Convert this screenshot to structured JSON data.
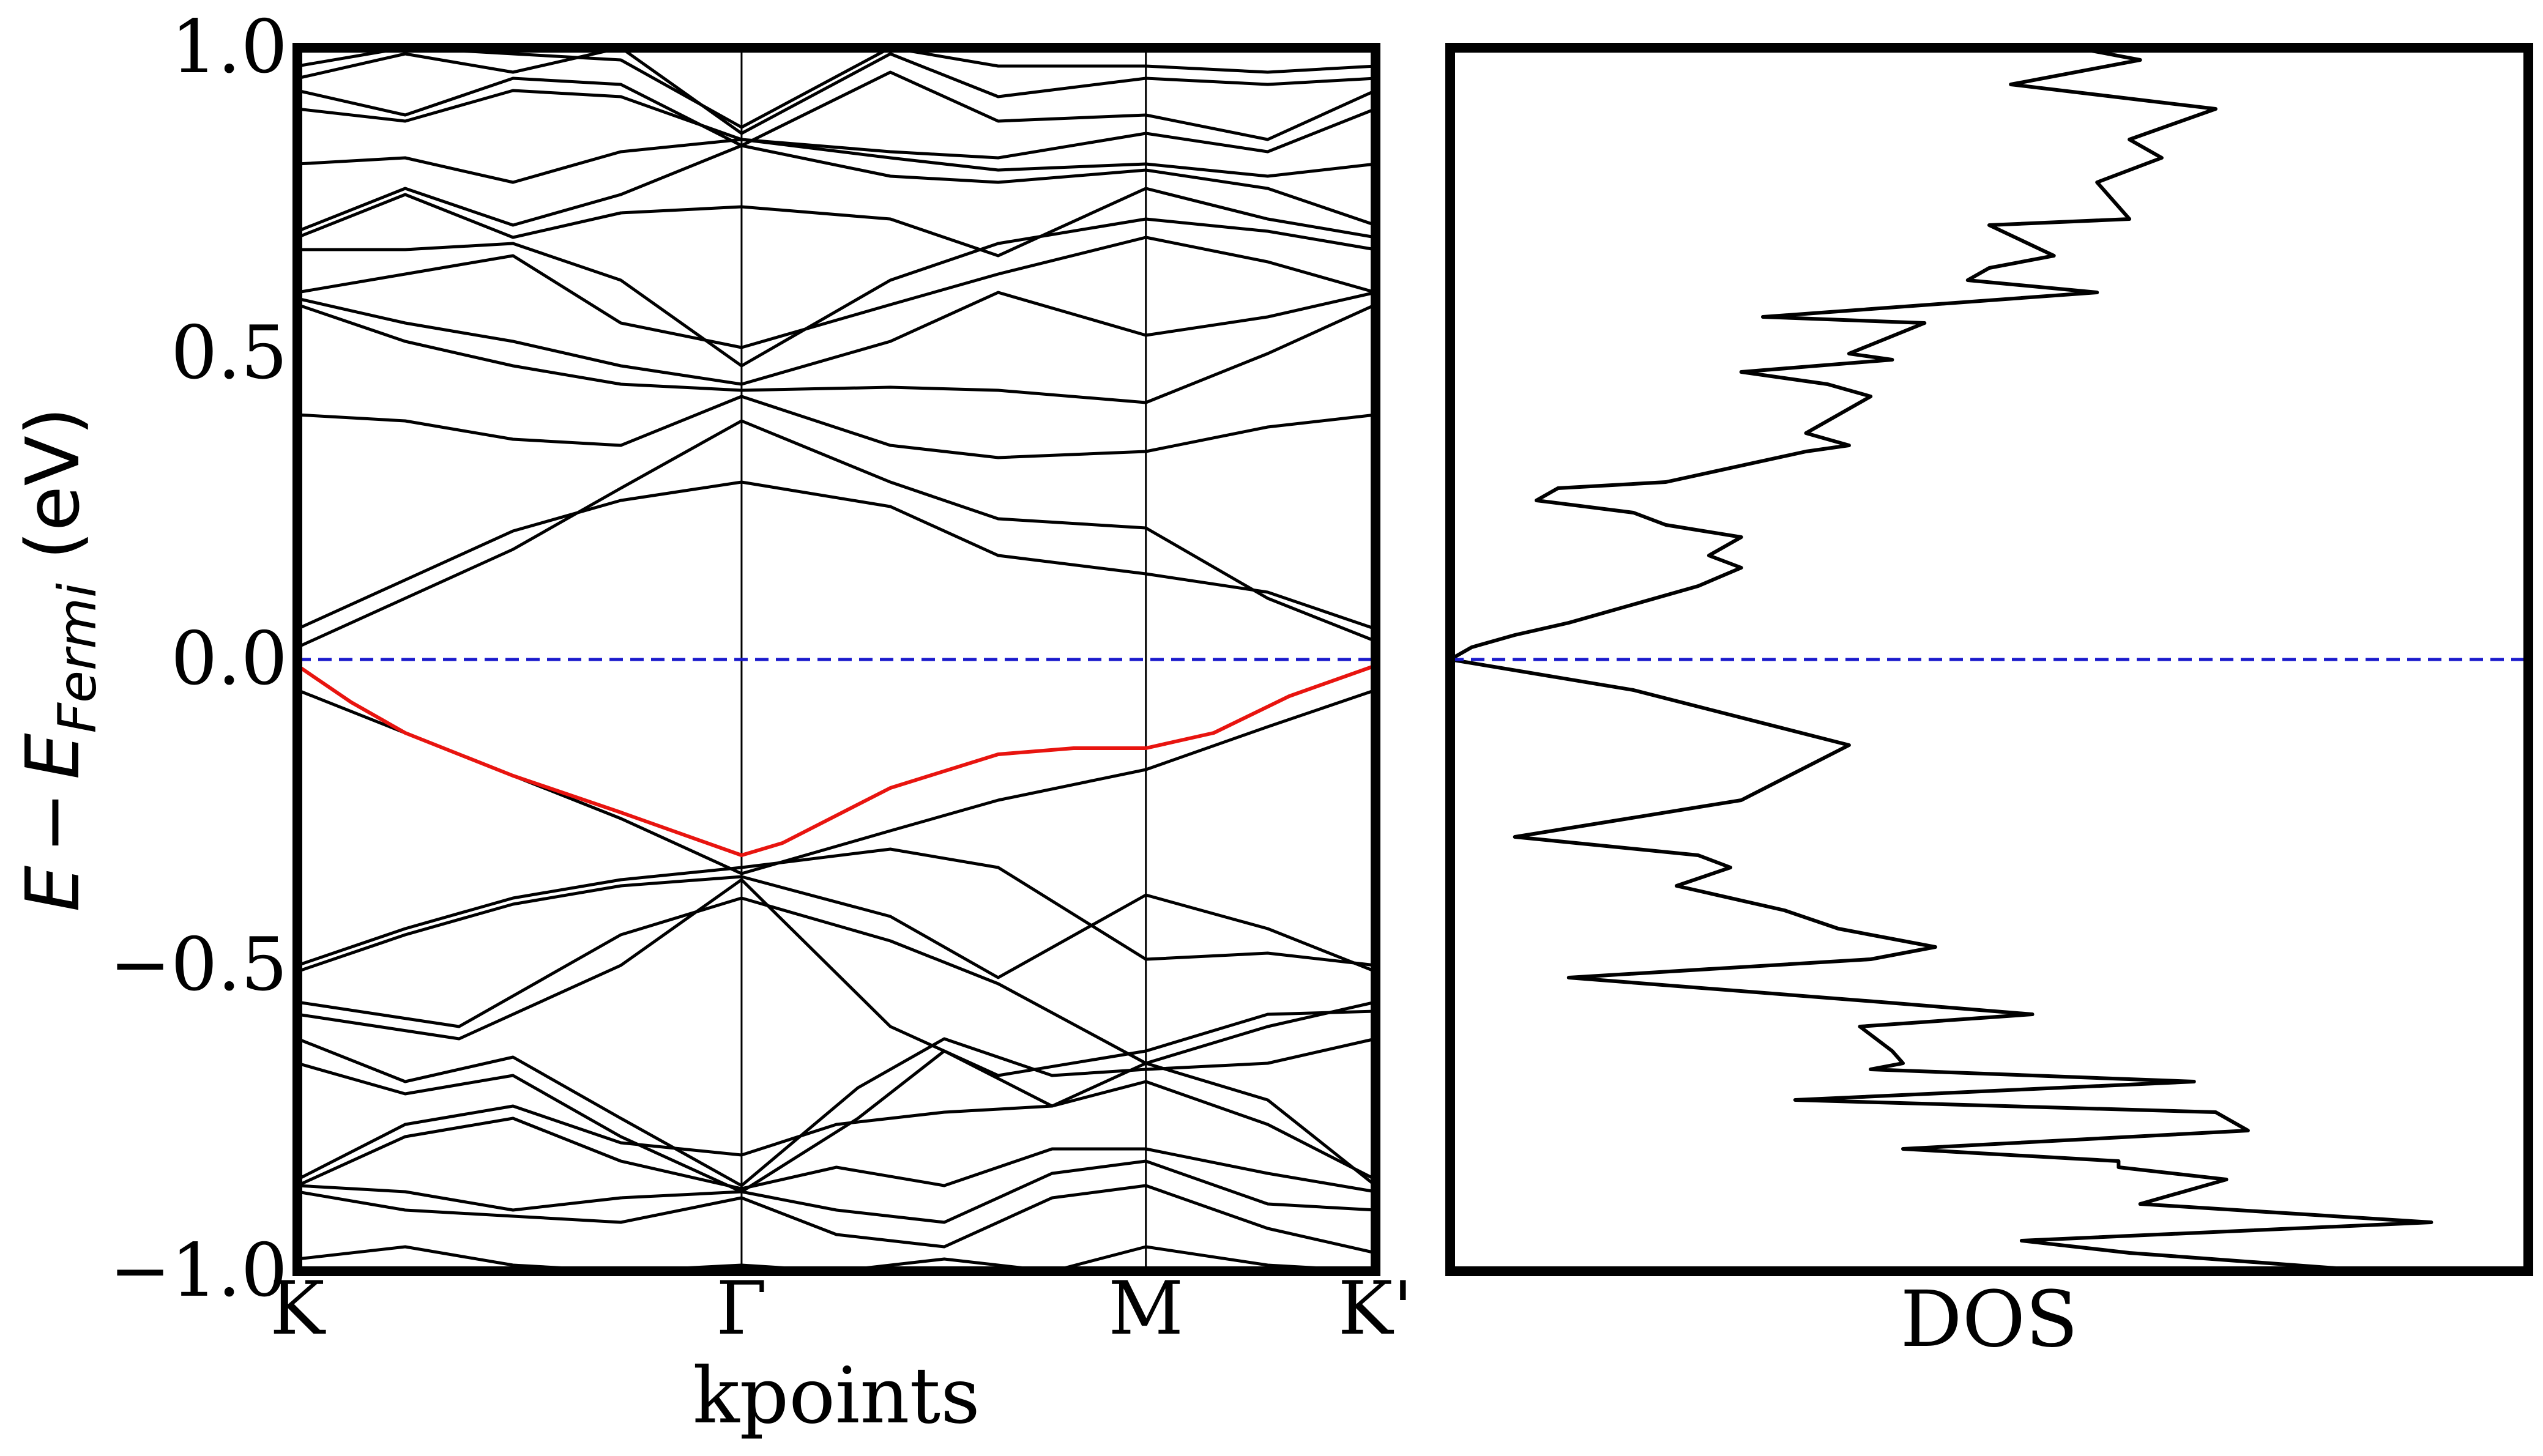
{
  "chart_data": [
    {
      "type": "line",
      "name": "band-structure",
      "title": "",
      "xlabel": "kpoints",
      "ylabel": {
        "E": "E",
        "minus": "−",
        "E2": "E",
        "sub": "Fermi",
        "units": " (eV)"
      },
      "ylim": [
        -1.0,
        1.0
      ],
      "xlim": [
        0,
        1
      ],
      "yticks": [
        {
          "value": -1.0,
          "label": "−1.0"
        },
        {
          "value": -0.5,
          "label": "−0.5"
        },
        {
          "value": 0.0,
          "label": "0.0"
        },
        {
          "value": 0.5,
          "label": "0.5"
        },
        {
          "value": 1.0,
          "label": "1.0"
        }
      ],
      "kpoints": [
        {
          "value": 0.0,
          "label": "K"
        },
        {
          "value": 0.412,
          "label": "Γ"
        },
        {
          "value": 0.787,
          "label": "M"
        },
        {
          "value": 1.0,
          "label": "K'"
        }
      ],
      "fermi_level": 0.0,
      "colors": {
        "bands": "#000000",
        "highlight": "#e8140f",
        "fermi": "#1a1acc"
      },
      "highlight_band": {
        "name": "highest valence band",
        "x": [
          0.0,
          0.05,
          0.1,
          0.2,
          0.3,
          0.412,
          0.45,
          0.55,
          0.65,
          0.72,
          0.787,
          0.85,
          0.92,
          1.0
        ],
        "y": [
          -0.01,
          -0.07,
          -0.12,
          -0.19,
          -0.25,
          -0.32,
          -0.3,
          -0.21,
          -0.155,
          -0.145,
          -0.145,
          -0.12,
          -0.06,
          -0.01
        ]
      },
      "bands": [
        {
          "x": [
            0.0,
            0.1,
            0.2,
            0.3,
            0.412,
            0.55,
            0.65,
            0.787,
            0.9,
            1.0
          ],
          "y": [
            -0.05,
            -0.12,
            -0.19,
            -0.26,
            -0.35,
            -0.28,
            -0.23,
            -0.18,
            -0.11,
            -0.05
          ]
        },
        {
          "x": [
            0.0,
            0.1,
            0.2,
            0.3,
            0.412,
            0.55,
            0.65,
            0.787,
            0.9,
            1.0
          ],
          "y": [
            -0.5,
            -0.44,
            -0.39,
            -0.36,
            -0.34,
            -0.31,
            -0.34,
            -0.49,
            -0.48,
            -0.5
          ]
        },
        {
          "x": [
            0.0,
            0.1,
            0.2,
            0.3,
            0.412,
            0.55,
            0.65,
            0.787,
            0.9,
            1.0
          ],
          "y": [
            -0.51,
            -0.45,
            -0.4,
            -0.37,
            -0.355,
            -0.42,
            -0.52,
            -0.385,
            -0.44,
            -0.51
          ]
        },
        {
          "x": [
            0.0,
            0.15,
            0.3,
            0.412,
            0.55,
            0.65,
            0.787,
            0.9,
            1.0
          ],
          "y": [
            -0.56,
            -0.6,
            -0.45,
            -0.39,
            -0.46,
            -0.53,
            -0.66,
            -0.6,
            -0.56
          ]
        },
        {
          "x": [
            0.0,
            0.15,
            0.3,
            0.412,
            0.55,
            0.65,
            0.787,
            0.9,
            1.0
          ],
          "y": [
            -0.58,
            -0.62,
            -0.5,
            -0.36,
            -0.6,
            -0.68,
            -0.64,
            -0.58,
            -0.575
          ]
        },
        {
          "x": [
            0.0,
            0.1,
            0.2,
            0.3,
            0.412,
            0.52,
            0.6,
            0.7,
            0.787,
            0.9,
            1.0
          ],
          "y": [
            -0.62,
            -0.69,
            -0.65,
            -0.75,
            -0.86,
            -0.7,
            -0.62,
            -0.68,
            -0.67,
            -0.66,
            -0.62
          ]
        },
        {
          "x": [
            0.0,
            0.1,
            0.2,
            0.3,
            0.412,
            0.52,
            0.6,
            0.7,
            0.787,
            0.9,
            1.0
          ],
          "y": [
            -0.66,
            -0.71,
            -0.68,
            -0.78,
            -0.87,
            -0.75,
            -0.64,
            -0.73,
            -0.66,
            -0.72,
            -0.86
          ]
        },
        {
          "x": [
            0.0,
            0.1,
            0.2,
            0.3,
            0.412,
            0.5,
            0.6,
            0.7,
            0.787,
            0.9,
            1.0
          ],
          "y": [
            -0.85,
            -0.76,
            -0.73,
            -0.79,
            -0.81,
            -0.76,
            -0.74,
            -0.73,
            -0.69,
            -0.76,
            -0.85
          ]
        },
        {
          "x": [
            0.0,
            0.1,
            0.2,
            0.3,
            0.412,
            0.5,
            0.6,
            0.7,
            0.787,
            0.9,
            1.0
          ],
          "y": [
            -0.86,
            -0.78,
            -0.75,
            -0.82,
            -0.865,
            -0.83,
            -0.86,
            -0.8,
            -0.8,
            -0.84,
            -0.87
          ]
        },
        {
          "x": [
            0.0,
            0.1,
            0.2,
            0.3,
            0.412,
            0.5,
            0.6,
            0.7,
            0.787,
            0.9,
            1.0
          ],
          "y": [
            -0.86,
            -0.87,
            -0.9,
            -0.88,
            -0.87,
            -0.9,
            -0.92,
            -0.84,
            -0.82,
            -0.89,
            -0.9
          ]
        },
        {
          "x": [
            0.0,
            0.1,
            0.2,
            0.3,
            0.412,
            0.5,
            0.6,
            0.7,
            0.787,
            0.9,
            1.0
          ],
          "y": [
            -0.87,
            -0.9,
            -0.91,
            -0.92,
            -0.88,
            -0.94,
            -0.96,
            -0.88,
            -0.86,
            -0.93,
            -0.97
          ]
        },
        {
          "x": [
            0.0,
            0.1,
            0.2,
            0.3,
            0.412,
            0.5,
            0.6,
            0.7,
            0.787,
            0.9,
            1.0
          ],
          "y": [
            -0.98,
            -0.96,
            -0.99,
            -1.0,
            -0.99,
            -1.0,
            -0.98,
            -1.0,
            -0.96,
            -0.99,
            -1.0
          ]
        },
        {
          "x": [
            0.0,
            0.1,
            0.2,
            0.3,
            0.412,
            0.55,
            0.65,
            0.787,
            0.9,
            1.0
          ],
          "y": [
            0.05,
            0.13,
            0.21,
            0.26,
            0.29,
            0.25,
            0.17,
            0.14,
            0.11,
            0.05
          ]
        },
        {
          "x": [
            0.0,
            0.1,
            0.2,
            0.3,
            0.412,
            0.55,
            0.65,
            0.787,
            0.9,
            1.0
          ],
          "y": [
            0.02,
            0.1,
            0.18,
            0.28,
            0.39,
            0.29,
            0.23,
            0.215,
            0.1,
            0.03
          ]
        },
        {
          "x": [
            0.0,
            0.1,
            0.2,
            0.3,
            0.412,
            0.55,
            0.65,
            0.787,
            0.9,
            1.0
          ],
          "y": [
            0.4,
            0.39,
            0.36,
            0.35,
            0.43,
            0.35,
            0.33,
            0.34,
            0.38,
            0.4
          ]
        },
        {
          "x": [
            0.0,
            0.1,
            0.2,
            0.3,
            0.412,
            0.55,
            0.65,
            0.787,
            0.9,
            1.0
          ],
          "y": [
            0.58,
            0.52,
            0.48,
            0.45,
            0.44,
            0.445,
            0.44,
            0.42,
            0.5,
            0.58
          ]
        },
        {
          "x": [
            0.0,
            0.1,
            0.2,
            0.3,
            0.412,
            0.55,
            0.65,
            0.787,
            0.9,
            1.0
          ],
          "y": [
            0.59,
            0.55,
            0.52,
            0.48,
            0.45,
            0.52,
            0.6,
            0.53,
            0.56,
            0.6
          ]
        },
        {
          "x": [
            0.0,
            0.1,
            0.2,
            0.3,
            0.412,
            0.55,
            0.65,
            0.787,
            0.9,
            1.0
          ],
          "y": [
            0.6,
            0.63,
            0.66,
            0.55,
            0.51,
            0.58,
            0.63,
            0.69,
            0.65,
            0.6
          ]
        },
        {
          "x": [
            0.0,
            0.1,
            0.2,
            0.3,
            0.412,
            0.55,
            0.65,
            0.787,
            0.9,
            1.0
          ],
          "y": [
            0.67,
            0.67,
            0.68,
            0.62,
            0.48,
            0.62,
            0.68,
            0.72,
            0.7,
            0.67
          ]
        },
        {
          "x": [
            0.0,
            0.1,
            0.2,
            0.3,
            0.412,
            0.55,
            0.65,
            0.787,
            0.9,
            1.0
          ],
          "y": [
            0.69,
            0.76,
            0.69,
            0.73,
            0.74,
            0.72,
            0.66,
            0.77,
            0.72,
            0.69
          ]
        },
        {
          "x": [
            0.0,
            0.1,
            0.2,
            0.3,
            0.412,
            0.55,
            0.65,
            0.787,
            0.9,
            1.0
          ],
          "y": [
            0.7,
            0.77,
            0.71,
            0.76,
            0.84,
            0.79,
            0.78,
            0.8,
            0.77,
            0.71
          ]
        },
        {
          "x": [
            0.0,
            0.1,
            0.2,
            0.3,
            0.412,
            0.55,
            0.65,
            0.787,
            0.9,
            1.0
          ],
          "y": [
            0.81,
            0.82,
            0.78,
            0.83,
            0.85,
            0.82,
            0.8,
            0.81,
            0.79,
            0.81
          ]
        },
        {
          "x": [
            0.0,
            0.1,
            0.2,
            0.3,
            0.412,
            0.55,
            0.65,
            0.787,
            0.9,
            1.0
          ],
          "y": [
            0.9,
            0.88,
            0.93,
            0.92,
            0.85,
            0.83,
            0.82,
            0.86,
            0.83,
            0.9
          ]
        },
        {
          "x": [
            0.0,
            0.1,
            0.2,
            0.3,
            0.412,
            0.55,
            0.65,
            0.787,
            0.9,
            1.0
          ],
          "y": [
            0.93,
            0.89,
            0.95,
            0.94,
            0.84,
            0.96,
            0.88,
            0.89,
            0.85,
            0.93
          ]
        },
        {
          "x": [
            0.0,
            0.1,
            0.2,
            0.3,
            0.412,
            0.55,
            0.65,
            0.787,
            0.9,
            1.0
          ],
          "y": [
            0.95,
            0.99,
            0.96,
            1.0,
            0.86,
            0.99,
            0.92,
            0.95,
            0.94,
            0.95
          ]
        },
        {
          "x": [
            0.0,
            0.1,
            0.2,
            0.3,
            0.412,
            0.55,
            0.65,
            0.787,
            0.9,
            1.0
          ],
          "y": [
            0.97,
            1.0,
            0.99,
            0.98,
            0.87,
            1.0,
            0.97,
            0.97,
            0.96,
            0.97
          ]
        }
      ]
    },
    {
      "type": "line",
      "name": "density-of-states",
      "title": "",
      "xlabel": "DOS",
      "ylabel": "",
      "ylim": [
        -1.0,
        1.0
      ],
      "xlim": [
        0,
        1
      ],
      "fermi_level": 0.0,
      "colors": {
        "curve": "#000000",
        "fermi": "#1a1acc"
      },
      "x": [
        0.58,
        0.64,
        0.52,
        0.71,
        0.63,
        0.66,
        0.6,
        0.63,
        0.5,
        0.56,
        0.5,
        0.48,
        0.6,
        0.29,
        0.44,
        0.37,
        0.41,
        0.27,
        0.35,
        0.39,
        0.33,
        0.37,
        0.33,
        0.2,
        0.1,
        0.08,
        0.17,
        0.2,
        0.27,
        0.24,
        0.27,
        0.23,
        0.15,
        0.11,
        0.06,
        0.02,
        0.0,
        0.17,
        0.37,
        0.27,
        0.06,
        0.23,
        0.26,
        0.21,
        0.31,
        0.36,
        0.45,
        0.39,
        0.11,
        0.4,
        0.54,
        0.38,
        0.41,
        0.42,
        0.39,
        0.69,
        0.32,
        0.71,
        0.74,
        0.42,
        0.62,
        0.62,
        0.72,
        0.64,
        0.91,
        0.53,
        0.63,
        0.86
      ],
      "y": [
        1.0,
        0.98,
        0.94,
        0.9,
        0.85,
        0.82,
        0.78,
        0.72,
        0.71,
        0.66,
        0.64,
        0.62,
        0.6,
        0.56,
        0.55,
        0.5,
        0.49,
        0.47,
        0.45,
        0.43,
        0.37,
        0.35,
        0.34,
        0.29,
        0.28,
        0.26,
        0.24,
        0.22,
        0.2,
        0.17,
        0.15,
        0.12,
        0.08,
        0.06,
        0.04,
        0.02,
        0.0,
        -0.05,
        -0.14,
        -0.23,
        -0.29,
        -0.32,
        -0.34,
        -0.37,
        -0.41,
        -0.44,
        -0.47,
        -0.49,
        -0.52,
        -0.56,
        -0.58,
        -0.6,
        -0.64,
        -0.66,
        -0.67,
        -0.69,
        -0.72,
        -0.74,
        -0.77,
        -0.8,
        -0.82,
        -0.83,
        -0.85,
        -0.89,
        -0.92,
        -0.95,
        -0.97,
        -1.0
      ]
    }
  ]
}
